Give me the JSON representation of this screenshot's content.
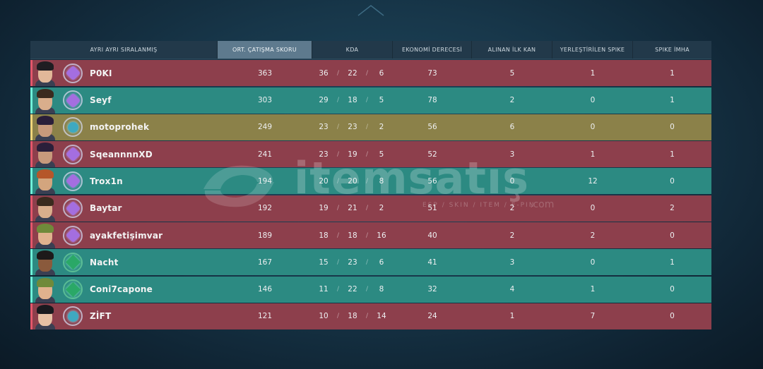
{
  "headers": {
    "player": "AYRI AYRI SIRALANMIŞ",
    "acs": "ORT. ÇATIŞMA SKORU",
    "kda": "KDA",
    "econ": "EKONOMİ DERECESİ",
    "first_blood": "ALINAN İLK KAN",
    "plants": "YERLEŞTİRİLEN SPIKE",
    "defuses": "SPIKE İMHA"
  },
  "rows": [
    {
      "team": "red",
      "rank": "purple",
      "hair": "#1f1d22",
      "skin": "#e2b899",
      "name": "P0KI",
      "acs": "363",
      "k": "36",
      "d": "22",
      "a": "6",
      "econ": "73",
      "fb": "5",
      "plants": "1",
      "defuses": "1"
    },
    {
      "team": "green",
      "rank": "purple",
      "hair": "#3a2a1e",
      "skin": "#d9ae8c",
      "name": "Seyf",
      "acs": "303",
      "k": "29",
      "d": "18",
      "a": "5",
      "econ": "78",
      "fb": "2",
      "plants": "0",
      "defuses": "1"
    },
    {
      "team": "gold",
      "rank": "teal",
      "hair": "#2a1f3a",
      "skin": "#c89a7c",
      "name": "motoprohek",
      "acs": "249",
      "k": "23",
      "d": "23",
      "a": "2",
      "econ": "56",
      "fb": "6",
      "plants": "0",
      "defuses": "0"
    },
    {
      "team": "red",
      "rank": "purple",
      "hair": "#2a1f3a",
      "skin": "#c89a7c",
      "name": "SqeannnnXD",
      "acs": "241",
      "k": "23",
      "d": "19",
      "a": "5",
      "econ": "52",
      "fb": "3",
      "plants": "1",
      "defuses": "1"
    },
    {
      "team": "green",
      "rank": "purple",
      "hair": "#b5562a",
      "skin": "#d3a57e",
      "name": "Trox1n",
      "acs": "194",
      "k": "20",
      "d": "20",
      "a": "8",
      "econ": "56",
      "fb": "0",
      "plants": "12",
      "defuses": "0"
    },
    {
      "team": "red",
      "rank": "purple",
      "hair": "#3a2a1e",
      "skin": "#d9ae8c",
      "name": "Baytar",
      "acs": "192",
      "k": "19",
      "d": "21",
      "a": "2",
      "econ": "51",
      "fb": "2",
      "plants": "0",
      "defuses": "2"
    },
    {
      "team": "red",
      "rank": "purple",
      "hair": "#6f8a3a",
      "skin": "#e0b28e",
      "name": "ayakfetişimvar",
      "acs": "189",
      "k": "18",
      "d": "18",
      "a": "16",
      "econ": "40",
      "fb": "2",
      "plants": "2",
      "defuses": "0"
    },
    {
      "team": "green",
      "rank": "emerald",
      "hair": "#1d1a1a",
      "skin": "#8a5a3c",
      "name": "Nacht",
      "acs": "167",
      "k": "15",
      "d": "23",
      "a": "6",
      "econ": "41",
      "fb": "3",
      "plants": "0",
      "defuses": "1"
    },
    {
      "team": "green",
      "rank": "emerald",
      "hair": "#6f8a3a",
      "skin": "#e0b28e",
      "name": "Coni7capone",
      "acs": "146",
      "k": "11",
      "d": "22",
      "a": "8",
      "econ": "32",
      "fb": "4",
      "plants": "1",
      "defuses": "0"
    },
    {
      "team": "red",
      "rank": "teal",
      "hair": "#1a1a1f",
      "skin": "#e6c0a4",
      "name": "ZİFT",
      "acs": "121",
      "k": "10",
      "d": "18",
      "a": "14",
      "econ": "24",
      "fb": "1",
      "plants": "7",
      "defuses": "0"
    }
  ],
  "watermark": {
    "text": "itemsatış",
    "sub": "ESP / SKIN / ITEM / E-PIN",
    "com": ".com"
  }
}
